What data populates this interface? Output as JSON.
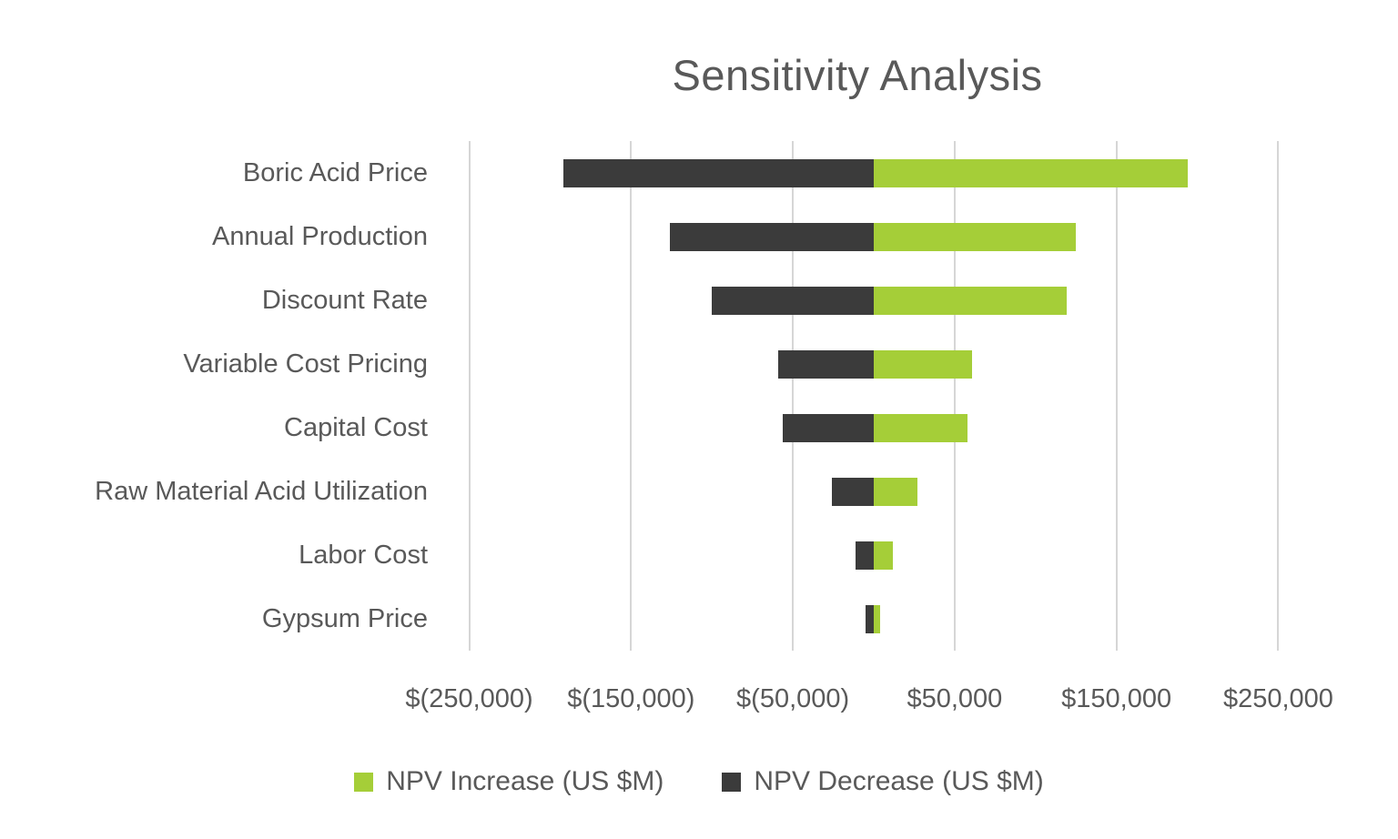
{
  "chart_data": {
    "type": "bar",
    "orientation": "horizontal",
    "variant": "tornado",
    "title": "Sensitivity Analysis",
    "categories": [
      "Boric Acid Price",
      "Annual Production",
      "Discount Rate",
      "Variable Cost Pricing",
      "Capital Cost",
      "Raw Material Acid Utilization",
      "Labor Cost",
      "Gypsum Price"
    ],
    "series": [
      {
        "name": "NPV Increase (US $M)",
        "color": "#a5ce38",
        "values": [
          194000,
          125000,
          119000,
          61000,
          58000,
          27000,
          12000,
          4000
        ]
      },
      {
        "name": "NPV Decrease (US $M)",
        "color": "#3b3b3b",
        "values": [
          -192000,
          -126000,
          -100000,
          -59000,
          -56000,
          -26000,
          -11000,
          -5000
        ]
      }
    ],
    "x_axis": {
      "min": -270000,
      "max": 270000,
      "tick_values": [
        -250000,
        -150000,
        -50000,
        50000,
        150000,
        250000
      ],
      "tick_labels": [
        "$(250,000)",
        "$(150,000)",
        "$(50,000)",
        "$50,000",
        "$150,000",
        "$250,000"
      ]
    },
    "grid": "vertical",
    "legend_position": "bottom",
    "text_color": "#595959",
    "gridline_color": "#d6d6d6",
    "background_color": "#ffffff"
  }
}
